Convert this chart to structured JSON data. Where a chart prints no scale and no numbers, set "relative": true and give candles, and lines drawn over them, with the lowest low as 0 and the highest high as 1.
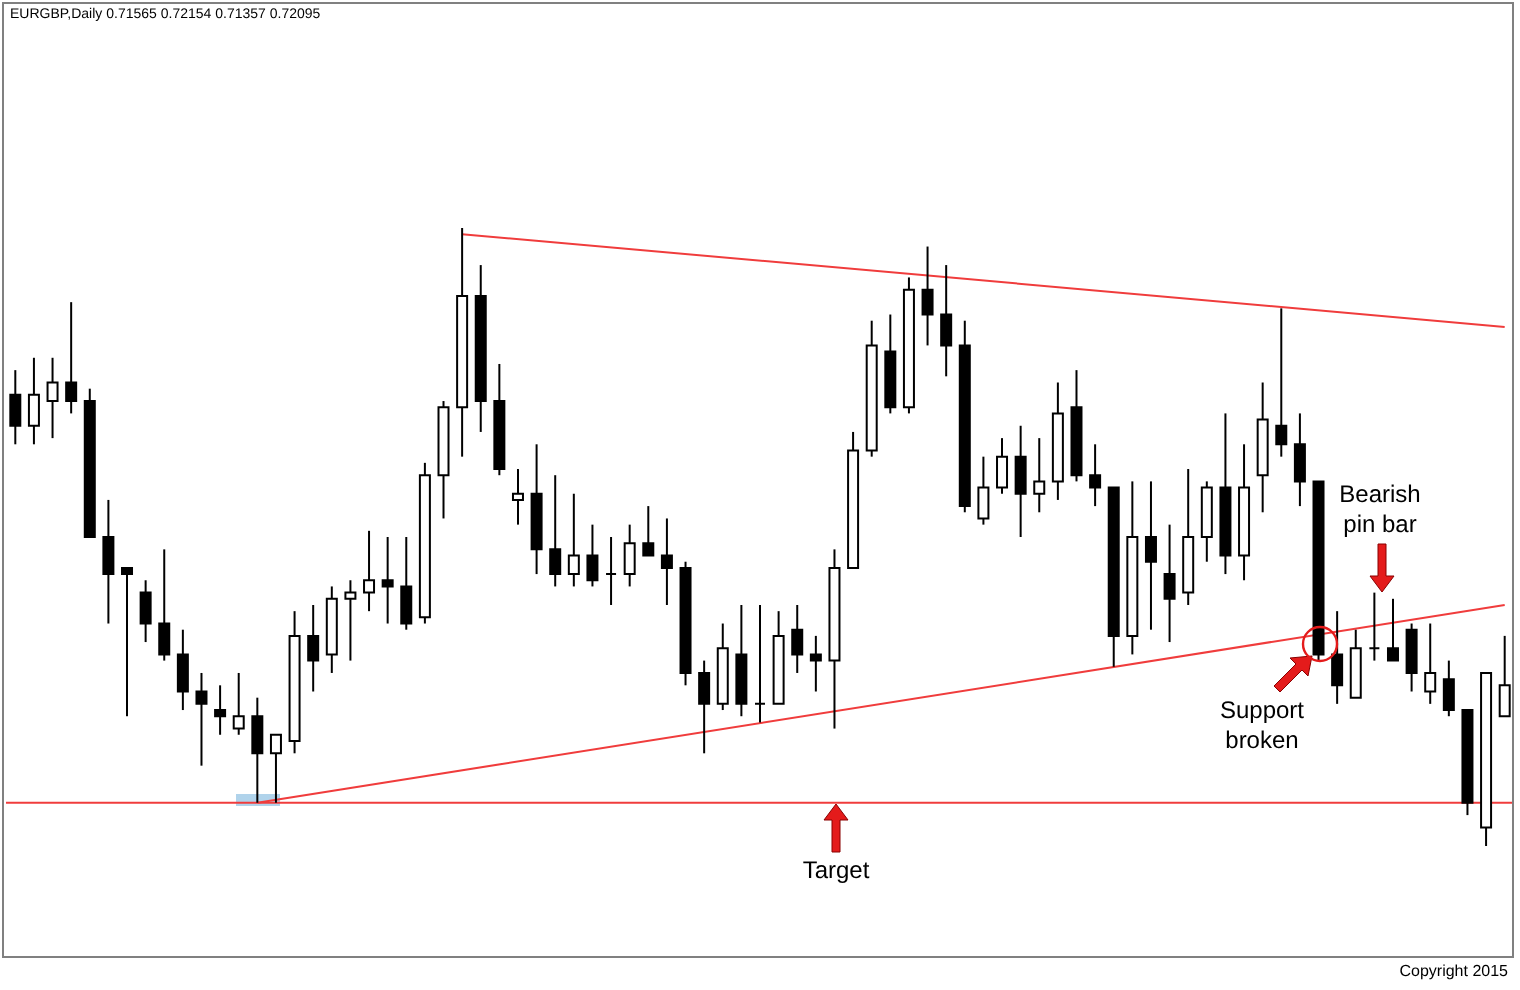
{
  "chart_data": {
    "type": "candlestick",
    "title": "EURGBP,Daily 0.71565 0.72154 0.71357 0.72095",
    "relative": true,
    "categories": [
      null,
      null,
      null,
      null,
      null,
      null,
      null,
      null,
      null,
      null,
      null,
      null,
      null,
      null,
      null,
      null,
      null,
      null,
      null,
      null,
      null,
      null,
      null,
      null,
      null,
      null,
      null,
      null,
      null,
      null,
      null,
      null,
      null,
      null,
      null,
      null,
      null,
      null,
      null,
      null,
      null,
      null,
      null,
      null,
      null,
      null,
      null,
      null,
      null,
      null,
      null,
      null,
      null,
      null,
      null,
      null,
      null,
      null,
      null,
      null,
      null,
      null,
      null,
      null,
      null,
      null,
      null,
      null,
      null,
      null,
      null,
      null,
      null,
      null,
      null,
      null,
      null,
      null,
      null,
      null,
      null
    ],
    "ohlc": [
      [
        0.73,
        0.77,
        0.65,
        0.68
      ],
      [
        0.68,
        0.79,
        0.65,
        0.73
      ],
      [
        0.72,
        0.79,
        0.66,
        0.75
      ],
      [
        0.75,
        0.88,
        0.7,
        0.72
      ],
      [
        0.72,
        0.74,
        0.5,
        0.5
      ],
      [
        0.5,
        0.56,
        0.36,
        0.44
      ],
      [
        0.45,
        0.45,
        0.21,
        0.44
      ],
      [
        0.41,
        0.43,
        0.33,
        0.36
      ],
      [
        0.36,
        0.48,
        0.3,
        0.31
      ],
      [
        0.31,
        0.35,
        0.22,
        0.25
      ],
      [
        0.25,
        0.28,
        0.13,
        0.23
      ],
      [
        0.22,
        0.26,
        0.18,
        0.21
      ],
      [
        0.19,
        0.28,
        0.18,
        0.21
      ],
      [
        0.21,
        0.24,
        0.07,
        0.15
      ],
      [
        0.15,
        0.18,
        0.07,
        0.18
      ],
      [
        0.17,
        0.38,
        0.15,
        0.34
      ],
      [
        0.34,
        0.39,
        0.25,
        0.3
      ],
      [
        0.31,
        0.42,
        0.28,
        0.4
      ],
      [
        0.4,
        0.43,
        0.3,
        0.41
      ],
      [
        0.41,
        0.51,
        0.38,
        0.43
      ],
      [
        0.43,
        0.5,
        0.36,
        0.42
      ],
      [
        0.42,
        0.5,
        0.35,
        0.36
      ],
      [
        0.37,
        0.62,
        0.36,
        0.6
      ],
      [
        0.6,
        0.72,
        0.53,
        0.71
      ],
      [
        0.71,
        1.0,
        0.63,
        0.89
      ],
      [
        0.89,
        0.94,
        0.67,
        0.72
      ],
      [
        0.72,
        0.78,
        0.6,
        0.61
      ],
      [
        0.56,
        0.61,
        0.52,
        0.57
      ],
      [
        0.57,
        0.65,
        0.44,
        0.48
      ],
      [
        0.48,
        0.6,
        0.42,
        0.44
      ],
      [
        0.44,
        0.57,
        0.42,
        0.47
      ],
      [
        0.47,
        0.52,
        0.42,
        0.43
      ],
      [
        0.44,
        0.5,
        0.39,
        0.44
      ],
      [
        0.44,
        0.52,
        0.42,
        0.49
      ],
      [
        0.49,
        0.55,
        0.47,
        0.47
      ],
      [
        0.47,
        0.53,
        0.39,
        0.45
      ],
      [
        0.45,
        0.46,
        0.26,
        0.28
      ],
      [
        0.28,
        0.3,
        0.15,
        0.23
      ],
      [
        0.23,
        0.36,
        0.22,
        0.32
      ],
      [
        0.31,
        0.39,
        0.21,
        0.23
      ],
      [
        0.23,
        0.39,
        0.2,
        0.23
      ],
      [
        0.23,
        0.38,
        0.23,
        0.34
      ],
      [
        0.35,
        0.39,
        0.28,
        0.31
      ],
      [
        0.31,
        0.34,
        0.25,
        0.3
      ],
      [
        0.3,
        0.48,
        0.19,
        0.45
      ],
      [
        0.45,
        0.67,
        0.45,
        0.64
      ],
      [
        0.64,
        0.85,
        0.63,
        0.81
      ],
      [
        0.8,
        0.86,
        0.7,
        0.71
      ],
      [
        0.71,
        0.92,
        0.7,
        0.9
      ],
      [
        0.9,
        0.97,
        0.81,
        0.86
      ],
      [
        0.86,
        0.94,
        0.76,
        0.81
      ],
      [
        0.81,
        0.85,
        0.54,
        0.55
      ],
      [
        0.53,
        0.63,
        0.52,
        0.58
      ],
      [
        0.58,
        0.66,
        0.57,
        0.63
      ],
      [
        0.63,
        0.68,
        0.5,
        0.57
      ],
      [
        0.57,
        0.66,
        0.54,
        0.59
      ],
      [
        0.59,
        0.75,
        0.56,
        0.7
      ],
      [
        0.71,
        0.77,
        0.59,
        0.6
      ],
      [
        0.6,
        0.65,
        0.55,
        0.58
      ],
      [
        0.58,
        0.58,
        0.29,
        0.34
      ],
      [
        0.34,
        0.59,
        0.31,
        0.5
      ],
      [
        0.5,
        0.59,
        0.35,
        0.46
      ],
      [
        0.44,
        0.52,
        0.33,
        0.4
      ],
      [
        0.41,
        0.61,
        0.39,
        0.5
      ],
      [
        0.5,
        0.59,
        0.46,
        0.58
      ],
      [
        0.58,
        0.7,
        0.44,
        0.47
      ],
      [
        0.47,
        0.65,
        0.43,
        0.58
      ],
      [
        0.6,
        0.75,
        0.54,
        0.69
      ],
      [
        0.68,
        0.87,
        0.63,
        0.65
      ],
      [
        0.65,
        0.7,
        0.55,
        0.59
      ],
      [
        0.59,
        0.59,
        0.3,
        0.31
      ],
      [
        0.31,
        0.38,
        0.23,
        0.26
      ],
      [
        0.24,
        0.35,
        0.24,
        0.32
      ],
      [
        0.32,
        0.41,
        0.3,
        0.32
      ],
      [
        0.32,
        0.4,
        0.3,
        0.3
      ],
      [
        0.35,
        0.36,
        0.25,
        0.28
      ],
      [
        0.25,
        0.36,
        0.23,
        0.28
      ],
      [
        0.27,
        0.3,
        0.21,
        0.22
      ],
      [
        0.22,
        0.22,
        0.05,
        0.07
      ],
      [
        0.03,
        0.28,
        0.0,
        0.28
      ],
      [
        0.21,
        0.34,
        0.21,
        0.26
      ]
    ],
    "series": [
      {
        "type": "line",
        "color": "#f03c3c",
        "values": [
          null,
          null,
          null,
          null,
          null,
          null,
          null,
          null,
          null,
          null,
          null,
          null,
          null,
          null,
          null,
          null,
          null,
          null,
          null,
          null,
          null,
          null,
          null,
          null,
          0.99,
          null,
          null,
          null,
          null,
          null,
          null,
          null,
          null,
          null,
          null,
          null,
          null,
          null,
          null,
          null,
          null,
          null,
          null,
          null,
          null,
          null,
          null,
          null,
          null,
          null,
          null,
          null,
          null,
          null,
          null,
          null,
          null,
          null,
          null,
          null,
          null,
          null,
          null,
          null,
          null,
          null,
          null,
          null,
          null,
          null,
          null,
          null,
          null,
          null,
          null,
          null,
          null,
          null,
          null,
          null,
          0.84
        ]
      },
      {
        "type": "line",
        "color": "#f03c3c",
        "values": [
          null,
          null,
          null,
          null,
          null,
          null,
          null,
          null,
          null,
          null,
          null,
          null,
          null,
          0.07,
          null,
          null,
          null,
          null,
          null,
          null,
          null,
          null,
          null,
          null,
          null,
          null,
          null,
          null,
          null,
          null,
          null,
          null,
          null,
          null,
          null,
          null,
          null,
          null,
          null,
          null,
          null,
          null,
          null,
          null,
          null,
          null,
          null,
          null,
          null,
          null,
          null,
          null,
          null,
          null,
          null,
          null,
          null,
          null,
          null,
          null,
          null,
          null,
          null,
          null,
          null,
          null,
          null,
          null,
          null,
          null,
          null,
          null,
          null,
          null,
          null,
          null,
          null,
          null,
          null,
          null,
          0.39
        ]
      }
    ],
    "ref_lines": [
      {
        "axis": "y",
        "value": 0.07,
        "color": "#f03c3c"
      }
    ],
    "annotations": [
      "Target",
      "Support broken",
      "Bearish pin bar",
      "Copyright 2015"
    ]
  }
}
